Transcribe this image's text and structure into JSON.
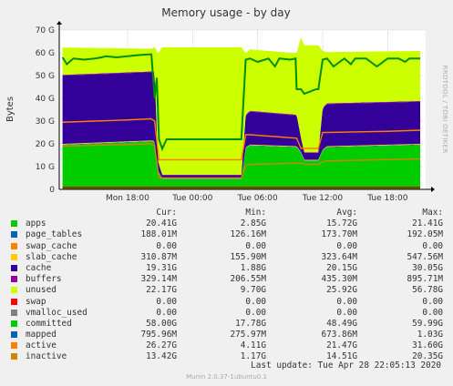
{
  "chart_data": {
    "type": "area",
    "title": "Memory usage - by day",
    "ylabel": "Bytes",
    "side_text": "RRDTOOL / TOBI OETIKER",
    "ylim": [
      0,
      70
    ],
    "y_ticks": [
      "0",
      "10 G",
      "20 G",
      "30 G",
      "40 G",
      "50 G",
      "60 G",
      "70 G"
    ],
    "x_ticks": [
      "Mon 18:00",
      "Tue 00:00",
      "Tue 06:00",
      "Tue 12:00",
      "Tue 18:00"
    ],
    "x_tick_hours": [
      6,
      12,
      18,
      24,
      30
    ],
    "x_range_hours": [
      -0.3,
      33.5
    ],
    "grid": true,
    "series": [
      {
        "name": "apps",
        "color": "#00cc00",
        "x": [
          0,
          8.2,
          8.5,
          8.8,
          9.2,
          9.6,
          16.5,
          16.9,
          17.3,
          21.6,
          22.0,
          22.3,
          23.6,
          24.0,
          24.4,
          33
        ],
        "y": [
          19.5,
          21.0,
          20.8,
          8,
          4.5,
          4.5,
          4.5,
          18,
          19.2,
          18.5,
          16,
          12.5,
          12.5,
          17,
          18.5,
          19.5
        ]
      },
      {
        "name": "page_tables",
        "color": "#0066b3",
        "x": [
          0,
          33
        ],
        "y": [
          0.18,
          0.18
        ]
      },
      {
        "name": "swap_cache",
        "color": "#ff8000",
        "x": [
          0,
          33
        ],
        "y": [
          0,
          0
        ]
      },
      {
        "name": "slab_cache",
        "color": "#ffcc00",
        "x": [
          0,
          8.4,
          8.8,
          9.2,
          16.6,
          17.0,
          33
        ],
        "y": [
          0.31,
          0.31,
          0.2,
          0.16,
          0.16,
          0.3,
          0.31
        ]
      },
      {
        "name": "cache",
        "color": "#330099",
        "x": [
          0,
          8.2,
          8.5,
          8.8,
          9.2,
          9.6,
          16.5,
          16.9,
          17.3,
          21.6,
          22.0,
          22.3,
          23.6,
          24.0,
          24.4,
          33
        ],
        "y": [
          30,
          30,
          30,
          4,
          1.3,
          1.3,
          1.3,
          14,
          14.5,
          13.5,
          6,
          3,
          3,
          18,
          18.5,
          18.5
        ]
      },
      {
        "name": "buffers",
        "color": "#990099",
        "x": [
          0,
          33
        ],
        "y": [
          0.33,
          0.33
        ]
      },
      {
        "name": "unused",
        "color": "#ccff00",
        "x": [
          0,
          8.2,
          8.5,
          8.8,
          9.2,
          9.6,
          16.5,
          16.9,
          17.3,
          21.6,
          22.0,
          22.3,
          23.6,
          24.0,
          24.4,
          33
        ],
        "y": [
          12,
          10,
          11,
          47,
          56,
          56,
          56,
          27,
          27,
          27,
          44,
          47,
          47,
          25,
          22.5,
          22
        ]
      },
      {
        "name": "swap",
        "color": "#ff0000",
        "x": [
          0,
          33
        ],
        "y": [
          0,
          0
        ]
      },
      {
        "name": "vmalloc_used",
        "color": "#808080",
        "x": [
          0,
          33
        ],
        "y": [
          0,
          0
        ]
      },
      {
        "name": "committed",
        "color": "#008f00",
        "x": [
          0,
          0.4,
          1,
          2,
          3,
          3.6,
          4,
          5,
          6,
          7,
          8,
          8.2,
          8.5,
          8.7,
          8.9,
          9.2,
          9.6,
          16.2,
          16.5,
          16.9,
          17.3,
          18,
          19,
          19.6,
          20,
          21,
          21.5,
          21.6,
          22.0,
          22.3,
          23.4,
          23.6,
          24.0,
          24.4,
          25,
          26,
          26.6,
          27,
          28,
          29,
          30,
          31,
          31.6,
          32,
          33
        ],
        "y": [
          58,
          55,
          57.5,
          57,
          57.5,
          58,
          58.5,
          58,
          58.5,
          59,
          59.3,
          59.3,
          40,
          49,
          22,
          17.8,
          22,
          22,
          22,
          57,
          57.5,
          56,
          57.5,
          54,
          57.5,
          57,
          57.5,
          44,
          44,
          42,
          44,
          44,
          57,
          57.5,
          54,
          57.5,
          55,
          57.5,
          57.5,
          54,
          57.5,
          57.5,
          56,
          57.5,
          57.5
        ]
      },
      {
        "name": "mapped",
        "color": "#cc0000",
        "x": [
          0,
          33
        ],
        "y": [
          0.8,
          0.8
        ]
      },
      {
        "name": "active",
        "color": "#ff8000",
        "x": [
          0,
          3,
          6,
          8.2,
          8.5,
          8.9,
          9.2,
          16.5,
          16.9,
          17.3,
          21.6,
          22.0,
          22.3,
          23.6,
          24.0,
          24.4,
          30,
          33
        ],
        "y": [
          29.5,
          30,
          30.5,
          31,
          30,
          13,
          13,
          13,
          24,
          24,
          22.5,
          18,
          18,
          18,
          25,
          25,
          25.5,
          26
        ]
      },
      {
        "name": "inactive",
        "color": "#cc8800",
        "x": [
          0,
          8.2,
          8.5,
          8.9,
          9.2,
          16.5,
          16.9,
          17.3,
          21.6,
          22.0,
          22.3,
          23.6,
          24.0,
          24.4,
          33
        ],
        "y": [
          19,
          20,
          19,
          5,
          5,
          5,
          10.5,
          11,
          11.5,
          11.5,
          11,
          11,
          12,
          12.5,
          13.4
        ]
      }
    ]
  },
  "legend": {
    "headers": [
      "Cur:",
      "Min:",
      "Avg:",
      "Max:"
    ],
    "rows": [
      {
        "name": "apps",
        "color": "#00cc00",
        "cur": "20.41G",
        "min": "2.85G",
        "avg": "15.72G",
        "max": "21.41G"
      },
      {
        "name": "page_tables",
        "color": "#0066b3",
        "cur": "188.01M",
        "min": "126.16M",
        "avg": "173.70M",
        "max": "192.05M"
      },
      {
        "name": "swap_cache",
        "color": "#ff8000",
        "cur": "0.00",
        "min": "0.00",
        "avg": "0.00",
        "max": "0.00"
      },
      {
        "name": "slab_cache",
        "color": "#ffcc00",
        "cur": "310.87M",
        "min": "155.90M",
        "avg": "323.64M",
        "max": "547.56M"
      },
      {
        "name": "cache",
        "color": "#330099",
        "cur": "19.31G",
        "min": "1.88G",
        "avg": "20.15G",
        "max": "30.05G"
      },
      {
        "name": "buffers",
        "color": "#990099",
        "cur": "329.14M",
        "min": "206.55M",
        "avg": "435.30M",
        "max": "895.71M"
      },
      {
        "name": "unused",
        "color": "#ccff00",
        "cur": "22.17G",
        "min": "9.70G",
        "avg": "25.92G",
        "max": "56.78G"
      },
      {
        "name": "swap",
        "color": "#ff0000",
        "cur": "0.00",
        "min": "0.00",
        "avg": "0.00",
        "max": "0.00"
      },
      {
        "name": "vmalloc_used",
        "color": "#808080",
        "cur": "0.00",
        "min": "0.00",
        "avg": "0.00",
        "max": "0.00"
      },
      {
        "name": "committed",
        "color": "#00cc00",
        "cur": "58.00G",
        "min": "17.78G",
        "avg": "48.49G",
        "max": "59.99G"
      },
      {
        "name": "mapped",
        "color": "#0066b3",
        "cur": "795.96M",
        "min": "275.97M",
        "avg": "673.86M",
        "max": "1.03G"
      },
      {
        "name": "active",
        "color": "#ff8000",
        "cur": "26.27G",
        "min": "4.11G",
        "avg": "21.47G",
        "max": "31.60G"
      },
      {
        "name": "inactive",
        "color": "#cc8800",
        "cur": "13.42G",
        "min": "1.17G",
        "avg": "14.51G",
        "max": "20.35G"
      }
    ]
  },
  "footer": {
    "last_update": "Last update: Tue Apr 28 22:05:13 2020",
    "munin": "Munin 2.0.37-1ubuntu0.1"
  }
}
